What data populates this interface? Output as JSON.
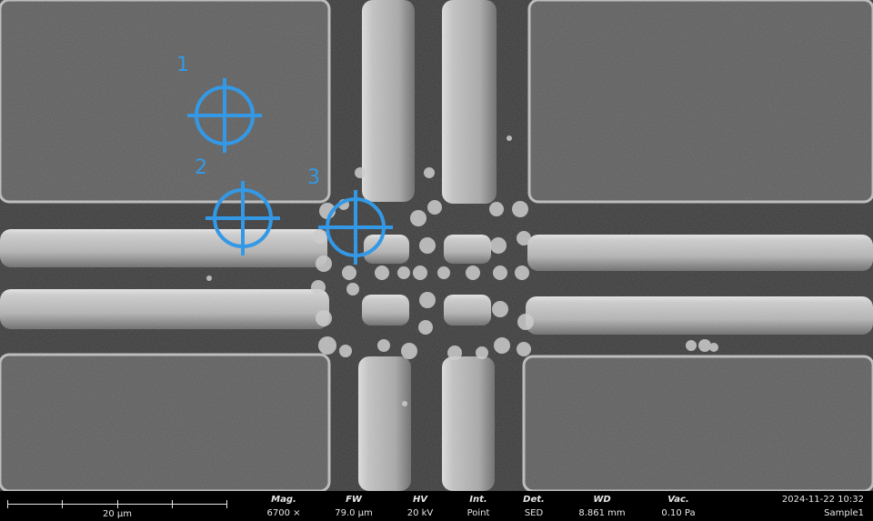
{
  "markers": [
    {
      "label": "1",
      "color": "#3399e6"
    },
    {
      "label": "2",
      "color": "#3399e6"
    },
    {
      "label": "3",
      "color": "#3399e6"
    }
  ],
  "scale_bar": {
    "label": "20 µm"
  },
  "params": [
    {
      "key": "Mag.",
      "value": "6700 ×"
    },
    {
      "key": "FW",
      "value": "79.0 µm"
    },
    {
      "key": "HV",
      "value": "20 kV"
    },
    {
      "key": "Int.",
      "value": "Point"
    },
    {
      "key": "Det.",
      "value": "SED"
    },
    {
      "key": "WD",
      "value": "8.861 mm"
    },
    {
      "key": "Vac.",
      "value": "0.10 Pa"
    }
  ],
  "timestamp": "2024-11-22 10:32",
  "sample": "Sample1",
  "colors": {
    "marker": "#3399e6",
    "background": "#5b5b5b",
    "infobar": "#000000"
  }
}
